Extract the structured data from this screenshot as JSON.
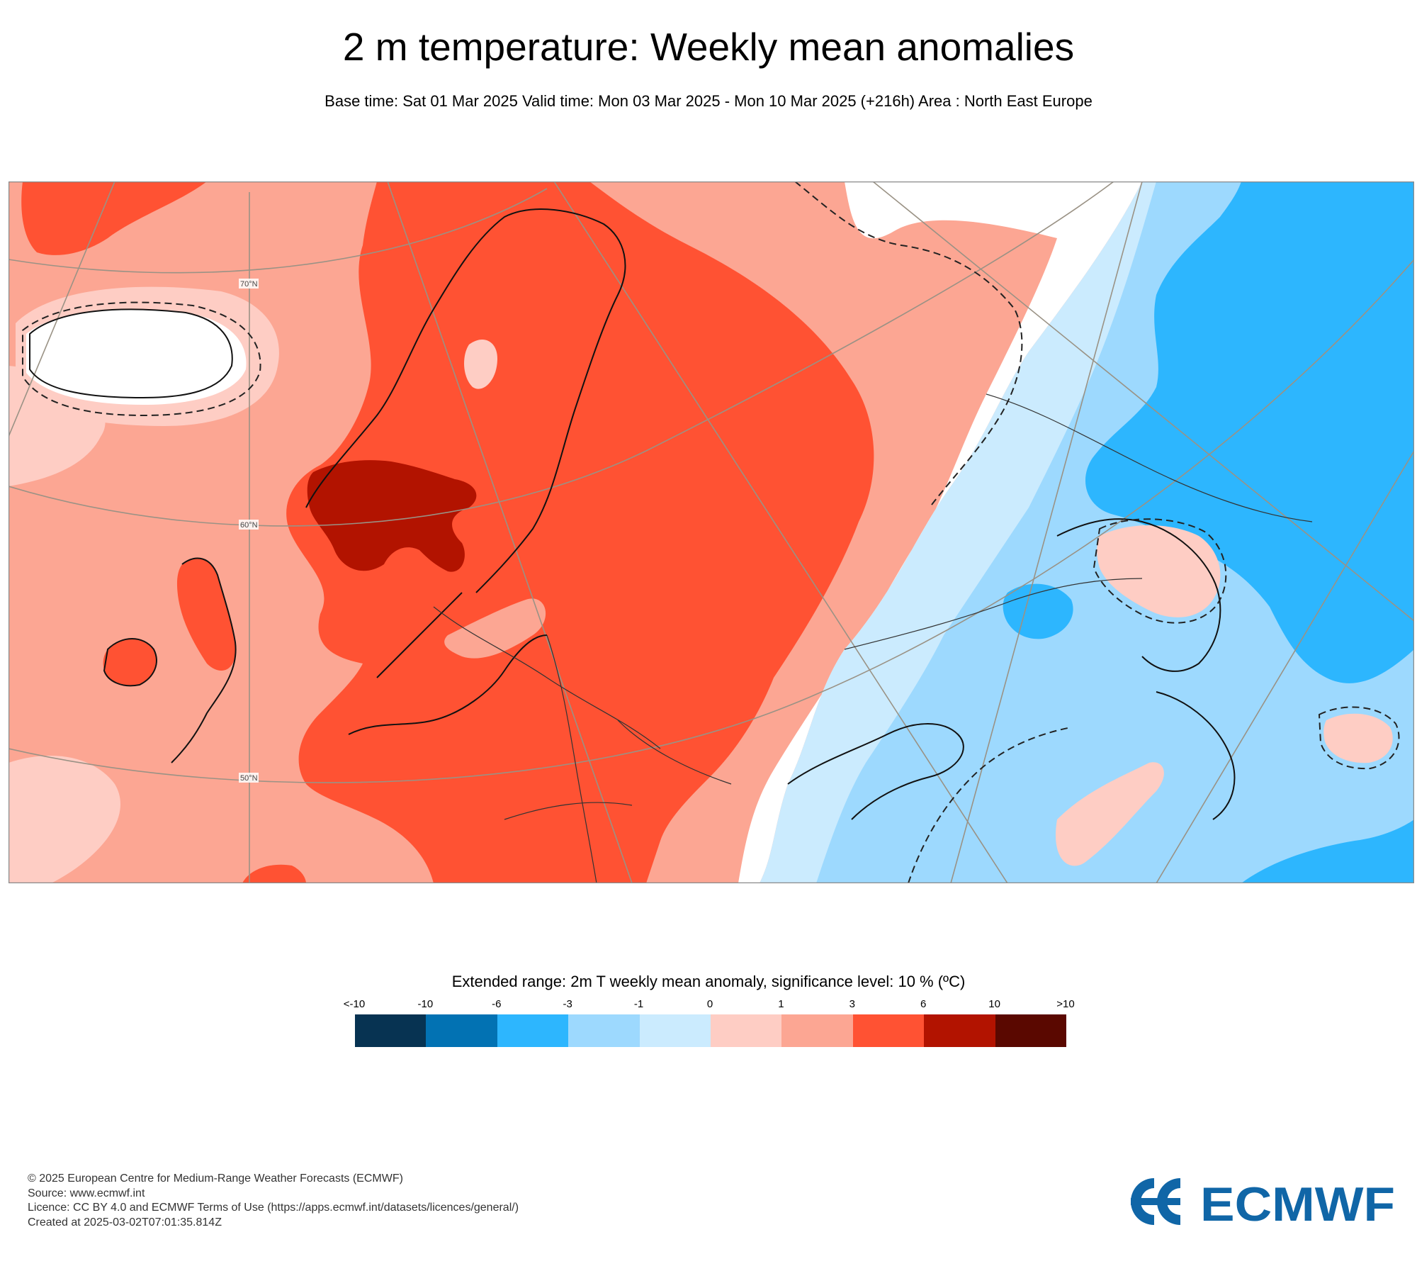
{
  "header": {
    "title": "2 m temperature: Weekly mean anomalies",
    "subtitle": "Base time: Sat 01 Mar 2025 Valid time: Mon 03 Mar 2025 - Mon 10 Mar 2025 (+216h) Area : North East Europe"
  },
  "map": {
    "lat_labels": [
      "70°N",
      "60°N",
      "50°N"
    ],
    "colors": {
      "land_border": "#111111",
      "graticule": "#9a9285",
      "frame": "#8a8a8a"
    }
  },
  "legend": {
    "title": "Extended range: 2m T weekly mean anomaly, significance level: 10 % (ºC)",
    "ticks": [
      "<-10",
      "-10",
      "-6",
      "-3",
      "-1",
      "0",
      "1",
      "3",
      "6",
      "10",
      ">10"
    ],
    "colors": [
      "#073352",
      "#0272b3",
      "#2db6fe",
      "#9dd9fe",
      "#cbebfe",
      "#ffffff",
      "#fecdc4",
      "#fca693",
      "#ff5233",
      "#b21300",
      "#5a0800"
    ]
  },
  "footer": {
    "lines": [
      "© 2025 European Centre for Medium-Range Weather Forecasts (ECMWF)",
      "Source: www.ecmwf.int",
      "Licence: CC BY 4.0 and ECMWF Terms of Use (https://apps.ecmwf.int/datasets/licences/general/)",
      "Created at 2025-03-02T07:01:35.814Z"
    ],
    "logo_text": "ECMWF",
    "logo_color": "#1066a7"
  }
}
